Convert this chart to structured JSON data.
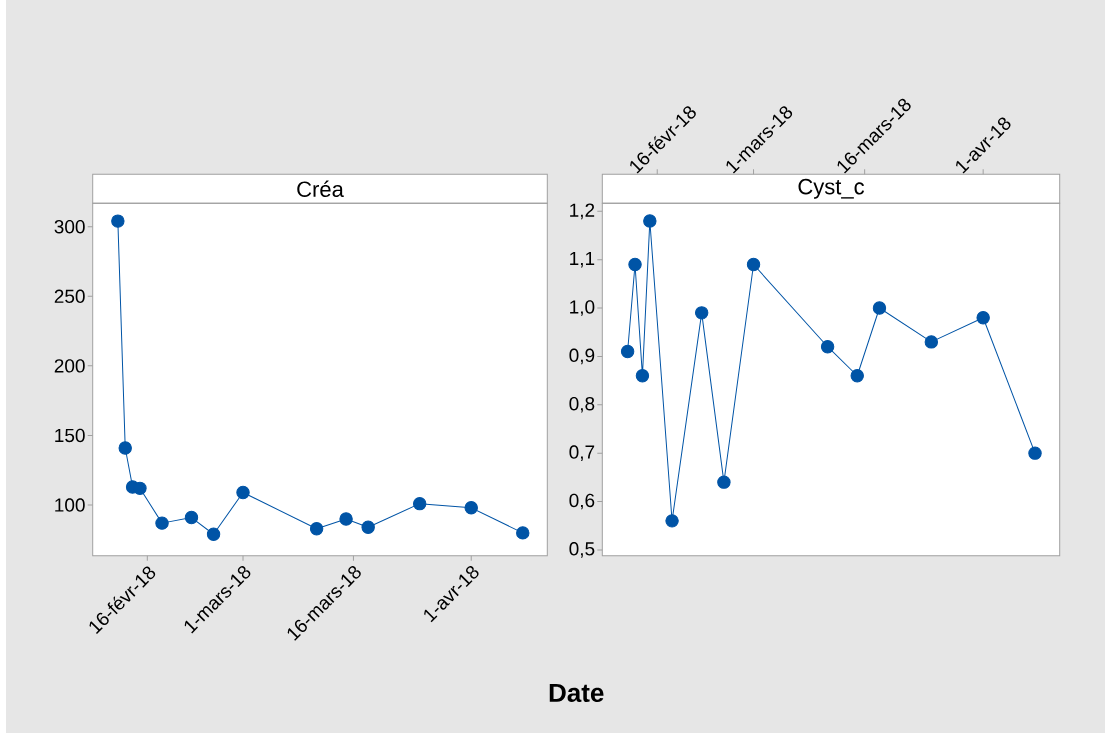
{
  "chart_data": [
    {
      "type": "line",
      "title": "Créa",
      "xlabel": "Date",
      "x": [
        "2018-02-12",
        "2018-02-13",
        "2018-02-14",
        "2018-02-15",
        "2018-02-18",
        "2018-02-22",
        "2018-02-25",
        "2018-03-01",
        "2018-03-11",
        "2018-03-15",
        "2018-03-18",
        "2018-03-25",
        "2018-04-01",
        "2018-04-08"
      ],
      "values": [
        304,
        141,
        113,
        112,
        87,
        91,
        79,
        109,
        83,
        90,
        84,
        101,
        98,
        80
      ],
      "color": "#0054a6",
      "marker": "circle",
      "line_style": "solid",
      "xlim": [
        "2018-02-08T14:00",
        "2018-04-11T08:00"
      ],
      "xticks": [
        {
          "value": "2018-02-16",
          "label": "16-févr-18"
        },
        {
          "value": "2018-03-01",
          "label": "1-mars-18"
        },
        {
          "value": "2018-03-16",
          "label": "16-mars-18"
        },
        {
          "value": "2018-04-01",
          "label": "1-avr-18"
        }
      ],
      "ylim": [
        63.6,
        316.8
      ],
      "yticks": [
        100,
        150,
        200,
        250,
        300
      ]
    },
    {
      "type": "line",
      "title": "Cyst_c",
      "x": [
        "2018-02-12",
        "2018-02-13",
        "2018-02-14",
        "2018-02-15",
        "2018-02-18",
        "2018-02-22",
        "2018-02-25",
        "2018-03-01",
        "2018-03-11",
        "2018-03-15",
        "2018-03-18",
        "2018-03-25",
        "2018-04-01",
        "2018-04-08"
      ],
      "values": [
        0.91,
        1.09,
        0.86,
        1.18,
        0.56,
        0.99,
        0.64,
        1.09,
        0.92,
        0.86,
        1.0,
        0.93,
        0.98,
        0.7
      ],
      "color": "#0054a6",
      "marker": "circle",
      "line_style": "solid",
      "xlim": [
        "2018-02-08T14:00",
        "2018-04-11T08:00"
      ],
      "xticks": [
        {
          "value": "2018-02-16",
          "label": "16-févr-18"
        },
        {
          "value": "2018-03-01",
          "label": "1-mars-18"
        },
        {
          "value": "2018-03-16",
          "label": "16-mars-18"
        },
        {
          "value": "2018-04-01",
          "label": "1-avr-18"
        }
      ],
      "ylim": [
        0.488,
        1.2165
      ],
      "yticks": [
        {
          "value": 0.5,
          "label": "0,5"
        },
        {
          "value": 0.6,
          "label": "0,6"
        },
        {
          "value": 0.7,
          "label": "0,7"
        },
        {
          "value": 0.8,
          "label": "0,8"
        },
        {
          "value": 0.9,
          "label": "0,9"
        },
        {
          "value": 1.0,
          "label": "1,0"
        },
        {
          "value": 1.1,
          "label": "1,1"
        },
        {
          "value": 1.2,
          "label": "1,2"
        }
      ]
    }
  ]
}
